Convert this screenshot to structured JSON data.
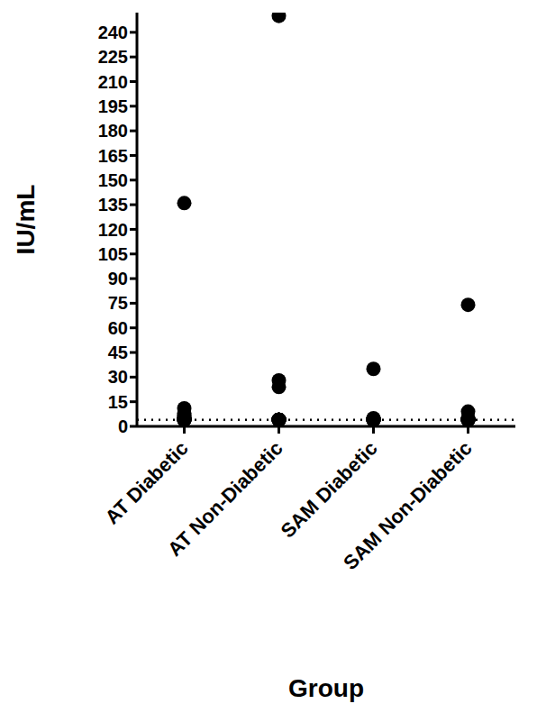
{
  "chart_data": {
    "type": "scatter",
    "x_label": "Group",
    "y_label": "IU/mL",
    "categories": [
      "AT Diabetic",
      "AT Non-Diabetic",
      "SAM Diabetic",
      "SAM Non-Diabetic"
    ],
    "values": [
      [
        136,
        11,
        8,
        7,
        6,
        5,
        5,
        4,
        4,
        4,
        4,
        4,
        4,
        4,
        4
      ],
      [
        250,
        28,
        24,
        4,
        4,
        4,
        4,
        4,
        4,
        4,
        4,
        4,
        4,
        4,
        4
      ],
      [
        35,
        5,
        4,
        4,
        4,
        4,
        4,
        4,
        4,
        4,
        4,
        4
      ],
      [
        74,
        9,
        5,
        4,
        4,
        4,
        4,
        4,
        4,
        4,
        4,
        4
      ]
    ],
    "threshold": 4,
    "color": "#000000",
    "ylim": [
      0,
      252
    ],
    "yticks": [
      0,
      15,
      30,
      45,
      60,
      75,
      90,
      105,
      120,
      135,
      150,
      165,
      180,
      195,
      210,
      225,
      240
    ],
    "grid": false
  }
}
